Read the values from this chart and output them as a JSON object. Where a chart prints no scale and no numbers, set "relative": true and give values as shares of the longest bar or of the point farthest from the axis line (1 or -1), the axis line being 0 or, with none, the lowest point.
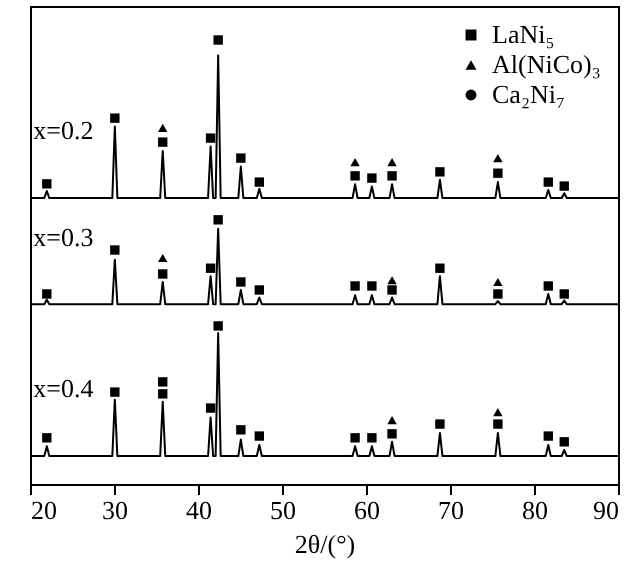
{
  "chart_data": {
    "type": "line",
    "xlabel": "2θ/(°)",
    "relative": true,
    "xlim": [
      20,
      90
    ],
    "xticks": [
      20,
      30,
      40,
      50,
      60,
      70,
      80,
      90
    ],
    "grid": false,
    "legend": "top right",
    "tick_labels": "x",
    "line_style": "solid",
    "series": [
      {
        "name": "x=0.2",
        "color": "#000000",
        "x": [
          20,
          21.7,
          22,
          22.3,
          29.8,
          30.1,
          30.4,
          35.5,
          35.8,
          36.1,
          41.2,
          41.5,
          41.8,
          42.1,
          42.4,
          42.7,
          44.8,
          45.1,
          45.4,
          47,
          47.3,
          47.6,
          58.4,
          58.7,
          59,
          60.4,
          60.7,
          61,
          62.8,
          63.1,
          63.4,
          68.5,
          68.8,
          69.1,
          75.4,
          75.7,
          76,
          81.4,
          81.7,
          82,
          83.3,
          83.6,
          83.9,
          90
        ],
        "values": [
          0.644,
          0.644,
          0.66,
          0.644,
          0.644,
          0.805,
          0.644,
          0.644,
          0.75,
          0.644,
          0.644,
          0.76,
          0.644,
          0.644,
          0.965,
          0.644,
          0.644,
          0.715,
          0.644,
          0.644,
          0.665,
          0.644,
          0.644,
          0.675,
          0.644,
          0.644,
          0.67,
          0.644,
          0.644,
          0.675,
          0.644,
          0.644,
          0.685,
          0.644,
          0.644,
          0.68,
          0.644,
          0.644,
          0.662,
          0.644,
          0.644,
          0.655,
          0.644,
          0.644
        ]
      },
      {
        "name": "x=0.3",
        "color": "#000000",
        "x": [
          20,
          21.7,
          22,
          22.3,
          29.8,
          30.1,
          30.4,
          35.5,
          35.8,
          36.1,
          41.2,
          41.5,
          41.8,
          42.1,
          42.4,
          42.7,
          44.8,
          45.1,
          45.4,
          47,
          47.3,
          47.6,
          58.4,
          58.7,
          59,
          60.4,
          60.7,
          61,
          62.8,
          63.1,
          63.4,
          68.5,
          68.8,
          69.1,
          75.4,
          75.7,
          76,
          81.4,
          81.7,
          82,
          83.3,
          83.6,
          83.9,
          90
        ],
        "values": [
          0.405,
          0.405,
          0.415,
          0.405,
          0.405,
          0.505,
          0.405,
          0.405,
          0.455,
          0.405,
          0.405,
          0.468,
          0.405,
          0.405,
          0.575,
          0.405,
          0.405,
          0.437,
          0.405,
          0.405,
          0.42,
          0.405,
          0.405,
          0.425,
          0.405,
          0.405,
          0.425,
          0.405,
          0.405,
          0.42,
          0.405,
          0.405,
          0.468,
          0.405,
          0.405,
          0.412,
          0.405,
          0.405,
          0.428,
          0.405,
          0.405,
          0.413,
          0.405,
          0.405
        ]
      },
      {
        "name": "x=0.4",
        "color": "#000000",
        "x": [
          20,
          21.7,
          22,
          22.3,
          29.8,
          30.1,
          30.4,
          35.5,
          35.8,
          36.1,
          41.2,
          41.5,
          41.8,
          42.1,
          42.4,
          42.7,
          44.8,
          45.1,
          45.4,
          47,
          47.3,
          47.6,
          58.4,
          58.7,
          59,
          60.4,
          60.7,
          61,
          62.8,
          63.1,
          63.4,
          68.5,
          68.8,
          69.1,
          75.4,
          75.7,
          76,
          81.4,
          81.7,
          82,
          83.3,
          83.6,
          83.9,
          90
        ],
        "values": [
          0.063,
          0.063,
          0.085,
          0.063,
          0.063,
          0.19,
          0.063,
          0.063,
          0.185,
          0.063,
          0.063,
          0.15,
          0.063,
          0.063,
          0.34,
          0.063,
          0.063,
          0.1,
          0.063,
          0.063,
          0.088,
          0.063,
          0.063,
          0.085,
          0.063,
          0.063,
          0.085,
          0.063,
          0.063,
          0.095,
          0.063,
          0.063,
          0.115,
          0.063,
          0.063,
          0.115,
          0.063,
          0.063,
          0.088,
          0.063,
          0.063,
          0.077,
          0.063,
          0.063
        ]
      },
      {
        "type": "scatter",
        "name": "LaNi₅",
        "marker": "square",
        "color": "#000000",
        "x": [
          22,
          30.1,
          35.8,
          41.5,
          42.4,
          45.1,
          47.3,
          58.7,
          60.7,
          63.1,
          68.8,
          75.7,
          81.7,
          83.6,
          22,
          30.1,
          35.8,
          41.5,
          42.4,
          45.1,
          47.3,
          58.7,
          60.7,
          63.1,
          68.8,
          75.7,
          81.7,
          83.6,
          22,
          30.1,
          35.8,
          35.8,
          41.5,
          42.4,
          45.1,
          47.3,
          58.7,
          60.7,
          63.1,
          68.8,
          75.7,
          81.7,
          83.6
        ],
        "values": [
          0.676,
          0.824,
          0.77,
          0.779,
          1,
          0.734,
          0.68,
          0.694,
          0.689,
          0.694,
          0.703,
          0.7,
          0.68,
          0.671,
          0.428,
          0.527,
          0.473,
          0.486,
          0.595,
          0.455,
          0.437,
          0.446,
          0.446,
          0.437,
          0.486,
          0.428,
          0.446,
          0.428,
          0.104,
          0.207,
          0.203,
          0.23,
          0.171,
          0.356,
          0.122,
          0.108,
          0.104,
          0.104,
          0.113,
          0.135,
          0.135,
          0.108,
          0.095
        ]
      },
      {
        "type": "scatter",
        "name": "Al(NiCo)₃",
        "marker": "triangle",
        "color": "#000000",
        "x": [
          35.8,
          58.7,
          63.1,
          75.7,
          35.8,
          63.1,
          75.7,
          63.1,
          75.7
        ],
        "values": [
          0.802,
          0.725,
          0.725,
          0.734,
          0.509,
          0.459,
          0.455,
          0.144,
          0.162
        ]
      },
      {
        "type": "scatter",
        "name": "Ca₂Ni₇",
        "marker": "circle",
        "color": "#000000"
      }
    ]
  }
}
